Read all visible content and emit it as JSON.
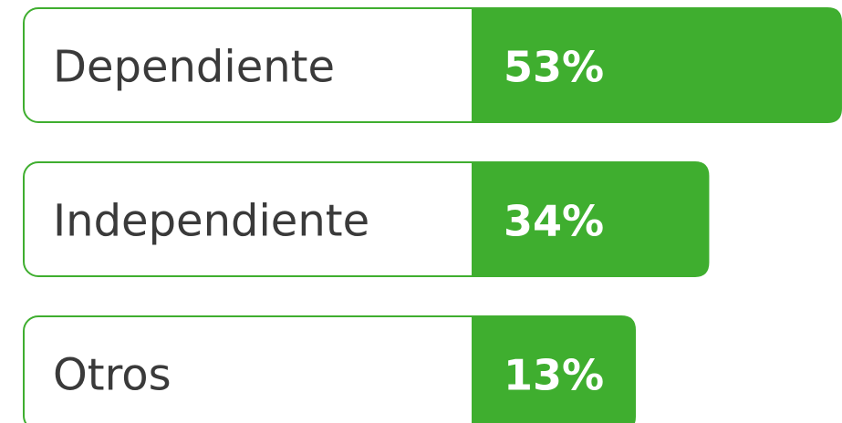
{
  "chart_data": {
    "type": "bar",
    "categories": [
      "Dependiente",
      "Independiente",
      "Otros"
    ],
    "values": [
      53,
      34,
      13
    ],
    "value_labels": [
      "53%",
      "34%",
      "13%"
    ],
    "color": "#3fae2f"
  }
}
